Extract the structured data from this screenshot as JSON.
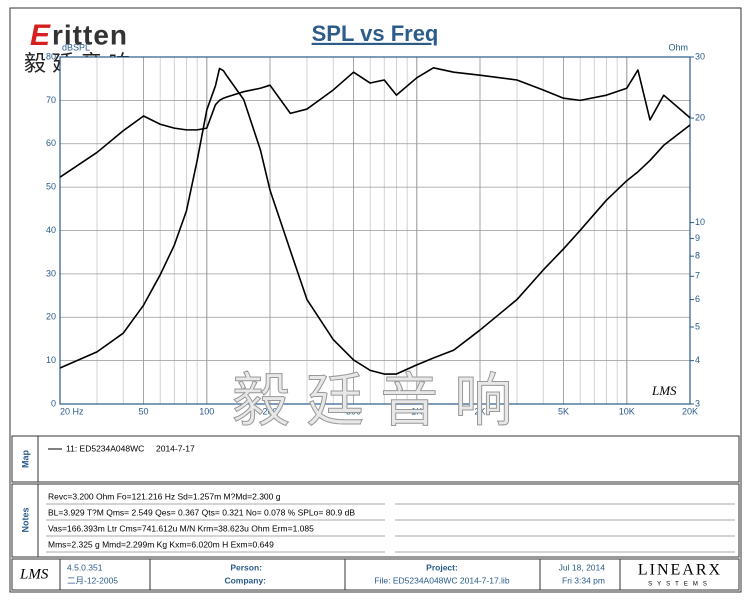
{
  "logo": {
    "initial": "E",
    "rest": "ritten",
    "chinese": "毅 廷 音 响"
  },
  "watermark": "毅 廷 音 响",
  "plot_mark": "LMS",
  "chart_data": {
    "type": "line",
    "title": "SPL vs Freq",
    "y_label": "dBSPL",
    "y2_label": "Ohm",
    "xscale": "log",
    "y2scale": "log",
    "grid": true,
    "x": [
      20,
      30,
      40,
      50,
      60,
      70,
      80,
      90,
      100,
      110,
      115,
      120,
      125,
      150,
      180,
      200,
      250,
      300,
      400,
      500,
      600,
      700,
      800,
      1000,
      1200,
      1500,
      2000,
      3000,
      4000,
      5000,
      6000,
      8000,
      10000,
      11300,
      12900,
      15000,
      20000
    ],
    "series": [
      {
        "name": "11: ED5234A048WC",
        "color": "#000000",
        "values": [
          52.3,
          58,
          63,
          66.4,
          64.5,
          63.6,
          63.2,
          63.2,
          63.6,
          69,
          70,
          70.5,
          70.8,
          72,
          72.8,
          73.5,
          67,
          68,
          72.4,
          76.5,
          74,
          74.7,
          71.2,
          75.2,
          77.5,
          76.5,
          75.8,
          74.7,
          72.4,
          70.5,
          70,
          71.2,
          72.8,
          77,
          65.5,
          71.2,
          66
        ]
      },
      {
        "color": "#000000",
        "axis": "y2",
        "values": [
          3.81,
          4.24,
          4.8,
          5.78,
          7.07,
          8.6,
          10.8,
          15.1,
          21.1,
          24.8,
          27.8,
          27.4,
          26.4,
          22.6,
          16.2,
          12.4,
          8.3,
          6,
          4.6,
          4.02,
          3.75,
          3.66,
          3.66,
          3.89,
          4.07,
          4.29,
          4.9,
          6,
          7.3,
          8.4,
          9.5,
          11.6,
          13.2,
          14,
          15.1,
          16.7,
          19.1
        ]
      }
    ],
    "xlim": [
      20,
      20000
    ],
    "xticks": [
      {
        "value": 20,
        "label": "20 Hz"
      },
      50,
      100,
      200,
      500,
      {
        "value": 1000,
        "label": "1K"
      },
      {
        "value": 2000,
        "label": "2K"
      },
      {
        "value": 5000,
        "label": "5K"
      },
      {
        "value": 10000,
        "label": "10K"
      },
      {
        "value": 20000,
        "label": "20K"
      }
    ],
    "ylim": [
      0,
      80
    ],
    "yticks": [
      0,
      10,
      20,
      30,
      40,
      50,
      60,
      70,
      80
    ],
    "y2lim": [
      3,
      30
    ],
    "y2ticks": [
      3,
      4,
      5,
      6,
      7,
      8,
      9,
      10,
      20,
      30
    ]
  },
  "map": {
    "label": "Map",
    "date": "2014-7-17"
  },
  "notes": {
    "label": "Notes",
    "lines": [
      "Revc=3.200 Ohm  Fo=121.216 Hz  Sd=1.257m M?Md=2.300 g",
      "BL=3.929 T?M  Qms= 2.549  Qes= 0.367  Qts= 0.321  No= 0.078 %  SPLo= 80.9 dB",
      "Vas=166.393m Ltr  Cms=741.612u M/N  Krm=38.623u Ohm  Erm=1.085",
      "Mms=2.325 g  Mmd=2.299m Kg  Kxm=6.020m H  Exm=0.649"
    ]
  },
  "footer": {
    "logo": "LMS",
    "version": "4.5.0.351",
    "build_date": "二月-12-2005",
    "person": "Person:",
    "company": "Company:",
    "project": "Project:",
    "file": "File: ED5234A048WC    2014-7-17.lib",
    "date": "Jul 18, 2014",
    "time": "Fri  3:34 pm",
    "brand": "LINEARX",
    "brand_sub": "SYSTEMS"
  }
}
